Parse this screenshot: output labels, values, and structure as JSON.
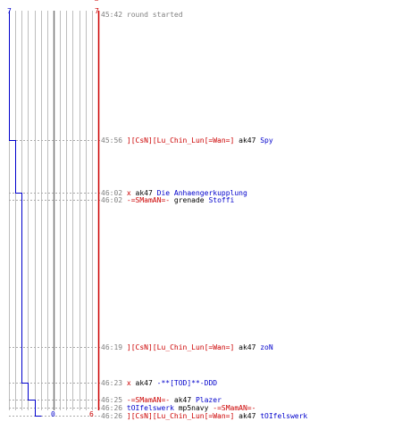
{
  "colors": {
    "team_red": "#cc0000",
    "team_blue": "#0000cc",
    "grid": "#bdbdbd",
    "time": "#808080",
    "text": "#000000"
  },
  "chart_data": {
    "type": "line",
    "xlim": [
      0,
      14
    ],
    "ylim_events": [
      0,
      9
    ],
    "blue_series": [
      7,
      6,
      5,
      4,
      3,
      2,
      1,
      0
    ],
    "blue_step_events": [
      1,
      2,
      5,
      6,
      8,
      9,
      10
    ],
    "red_series": [
      7,
      6
    ],
    "red_step_events": [
      9
    ]
  },
  "axis": {
    "top_left": "7",
    "top_right": "7",
    "bottom_mid": "0",
    "bottom_right": "6"
  },
  "log": [
    {
      "time": "45:42",
      "segments": [
        {
          "text": "round started",
          "cls": "gray"
        }
      ]
    },
    {
      "time": "45:56",
      "segments": [
        {
          "text": "][CsN][Lu_Chin_Lun[=Wan=]",
          "cls": "red"
        },
        {
          "text": " ak47 ",
          "cls": "blk"
        },
        {
          "text": "Spy",
          "cls": "blue"
        }
      ]
    },
    {
      "time": "46:02",
      "segments": [
        {
          "text": "x",
          "cls": "red"
        },
        {
          "text": " ak47 ",
          "cls": "blk"
        },
        {
          "text": "Die Anhaengerkupplung",
          "cls": "blue"
        }
      ]
    },
    {
      "time": "46:02",
      "segments": [
        {
          "text": "-=SMamAN=-",
          "cls": "red"
        },
        {
          "text": " grenade ",
          "cls": "blk"
        },
        {
          "text": "Stoffi",
          "cls": "blue"
        }
      ]
    },
    {
      "time": "46:19",
      "segments": [
        {
          "text": "][CsN][Lu_Chin_Lun[=Wan=]",
          "cls": "red"
        },
        {
          "text": " ak47 ",
          "cls": "blk"
        },
        {
          "text": "zoN",
          "cls": "blue"
        }
      ]
    },
    {
      "time": "46:23",
      "segments": [
        {
          "text": "x",
          "cls": "red"
        },
        {
          "text": " ak47 ",
          "cls": "blk"
        },
        {
          "text": "-**[TOD]**-DDD",
          "cls": "blue"
        }
      ]
    },
    {
      "time": "46:25",
      "segments": [
        {
          "text": "-=SMamAN=-",
          "cls": "red"
        },
        {
          "text": " ak47 ",
          "cls": "blk"
        },
        {
          "text": "Plazer",
          "cls": "blue"
        }
      ]
    },
    {
      "time": "46:26",
      "segments": [
        {
          "text": "tOIfelswerk",
          "cls": "blue"
        },
        {
          "text": " mp5navy ",
          "cls": "blk"
        },
        {
          "text": "-=SMamAN=-",
          "cls": "red"
        }
      ]
    },
    {
      "time": "46:26",
      "segments": [
        {
          "text": "][CsN][Lu_Chin_Lun[=Wan=]",
          "cls": "red"
        },
        {
          "text": " ak47 ",
          "cls": "blk"
        },
        {
          "text": "tOIfelswerk",
          "cls": "blue"
        }
      ]
    }
  ]
}
